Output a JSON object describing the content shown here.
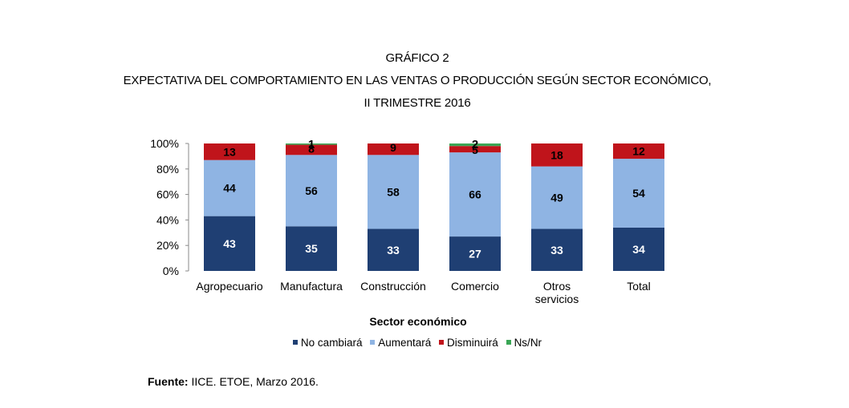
{
  "titles": {
    "line1": "GRÁFICO 2",
    "line2": "EXPECTATIVA DEL COMPORTAMIENTO EN LAS VENTAS O PRODUCCIÓN SEGÚN SECTOR ECONÓMICO,",
    "line3": "II TRIMESTRE 2016"
  },
  "source": {
    "label": "Fuente:",
    "text": " IICE. ETOE, Marzo 2016."
  },
  "colors": {
    "no_cambiara": "#1f3f73",
    "aumentara": "#8fb4e3",
    "disminuira": "#c0141b",
    "nsnr": "#3aa655"
  },
  "chart_data": {
    "type": "bar",
    "stacked": true,
    "categories": [
      "Agropecuario",
      "Manufactura",
      "Construcción",
      "Comercio",
      "Otros servicios",
      "Total"
    ],
    "category_lines": [
      [
        "Agropecuario"
      ],
      [
        "Manufactura"
      ],
      [
        "Construcción"
      ],
      [
        "Comercio"
      ],
      [
        "Otros",
        "servicios"
      ],
      [
        "Total"
      ]
    ],
    "series": [
      {
        "name": "No cambiará",
        "values": [
          43,
          35,
          33,
          27,
          33,
          34
        ]
      },
      {
        "name": "Aumentará",
        "values": [
          44,
          56,
          58,
          66,
          49,
          54
        ]
      },
      {
        "name": "Disminuirá",
        "values": [
          13,
          8,
          9,
          5,
          18,
          12
        ]
      },
      {
        "name": "Ns/Nr",
        "values": [
          0,
          1,
          0,
          2,
          0,
          0
        ]
      }
    ],
    "xlabel": "Sector económico",
    "ylabel": "",
    "ylim": [
      0,
      100
    ],
    "yticks": [
      "0%",
      "20%",
      "40%",
      "60%",
      "80%",
      "100%"
    ],
    "legend_position": "bottom"
  }
}
